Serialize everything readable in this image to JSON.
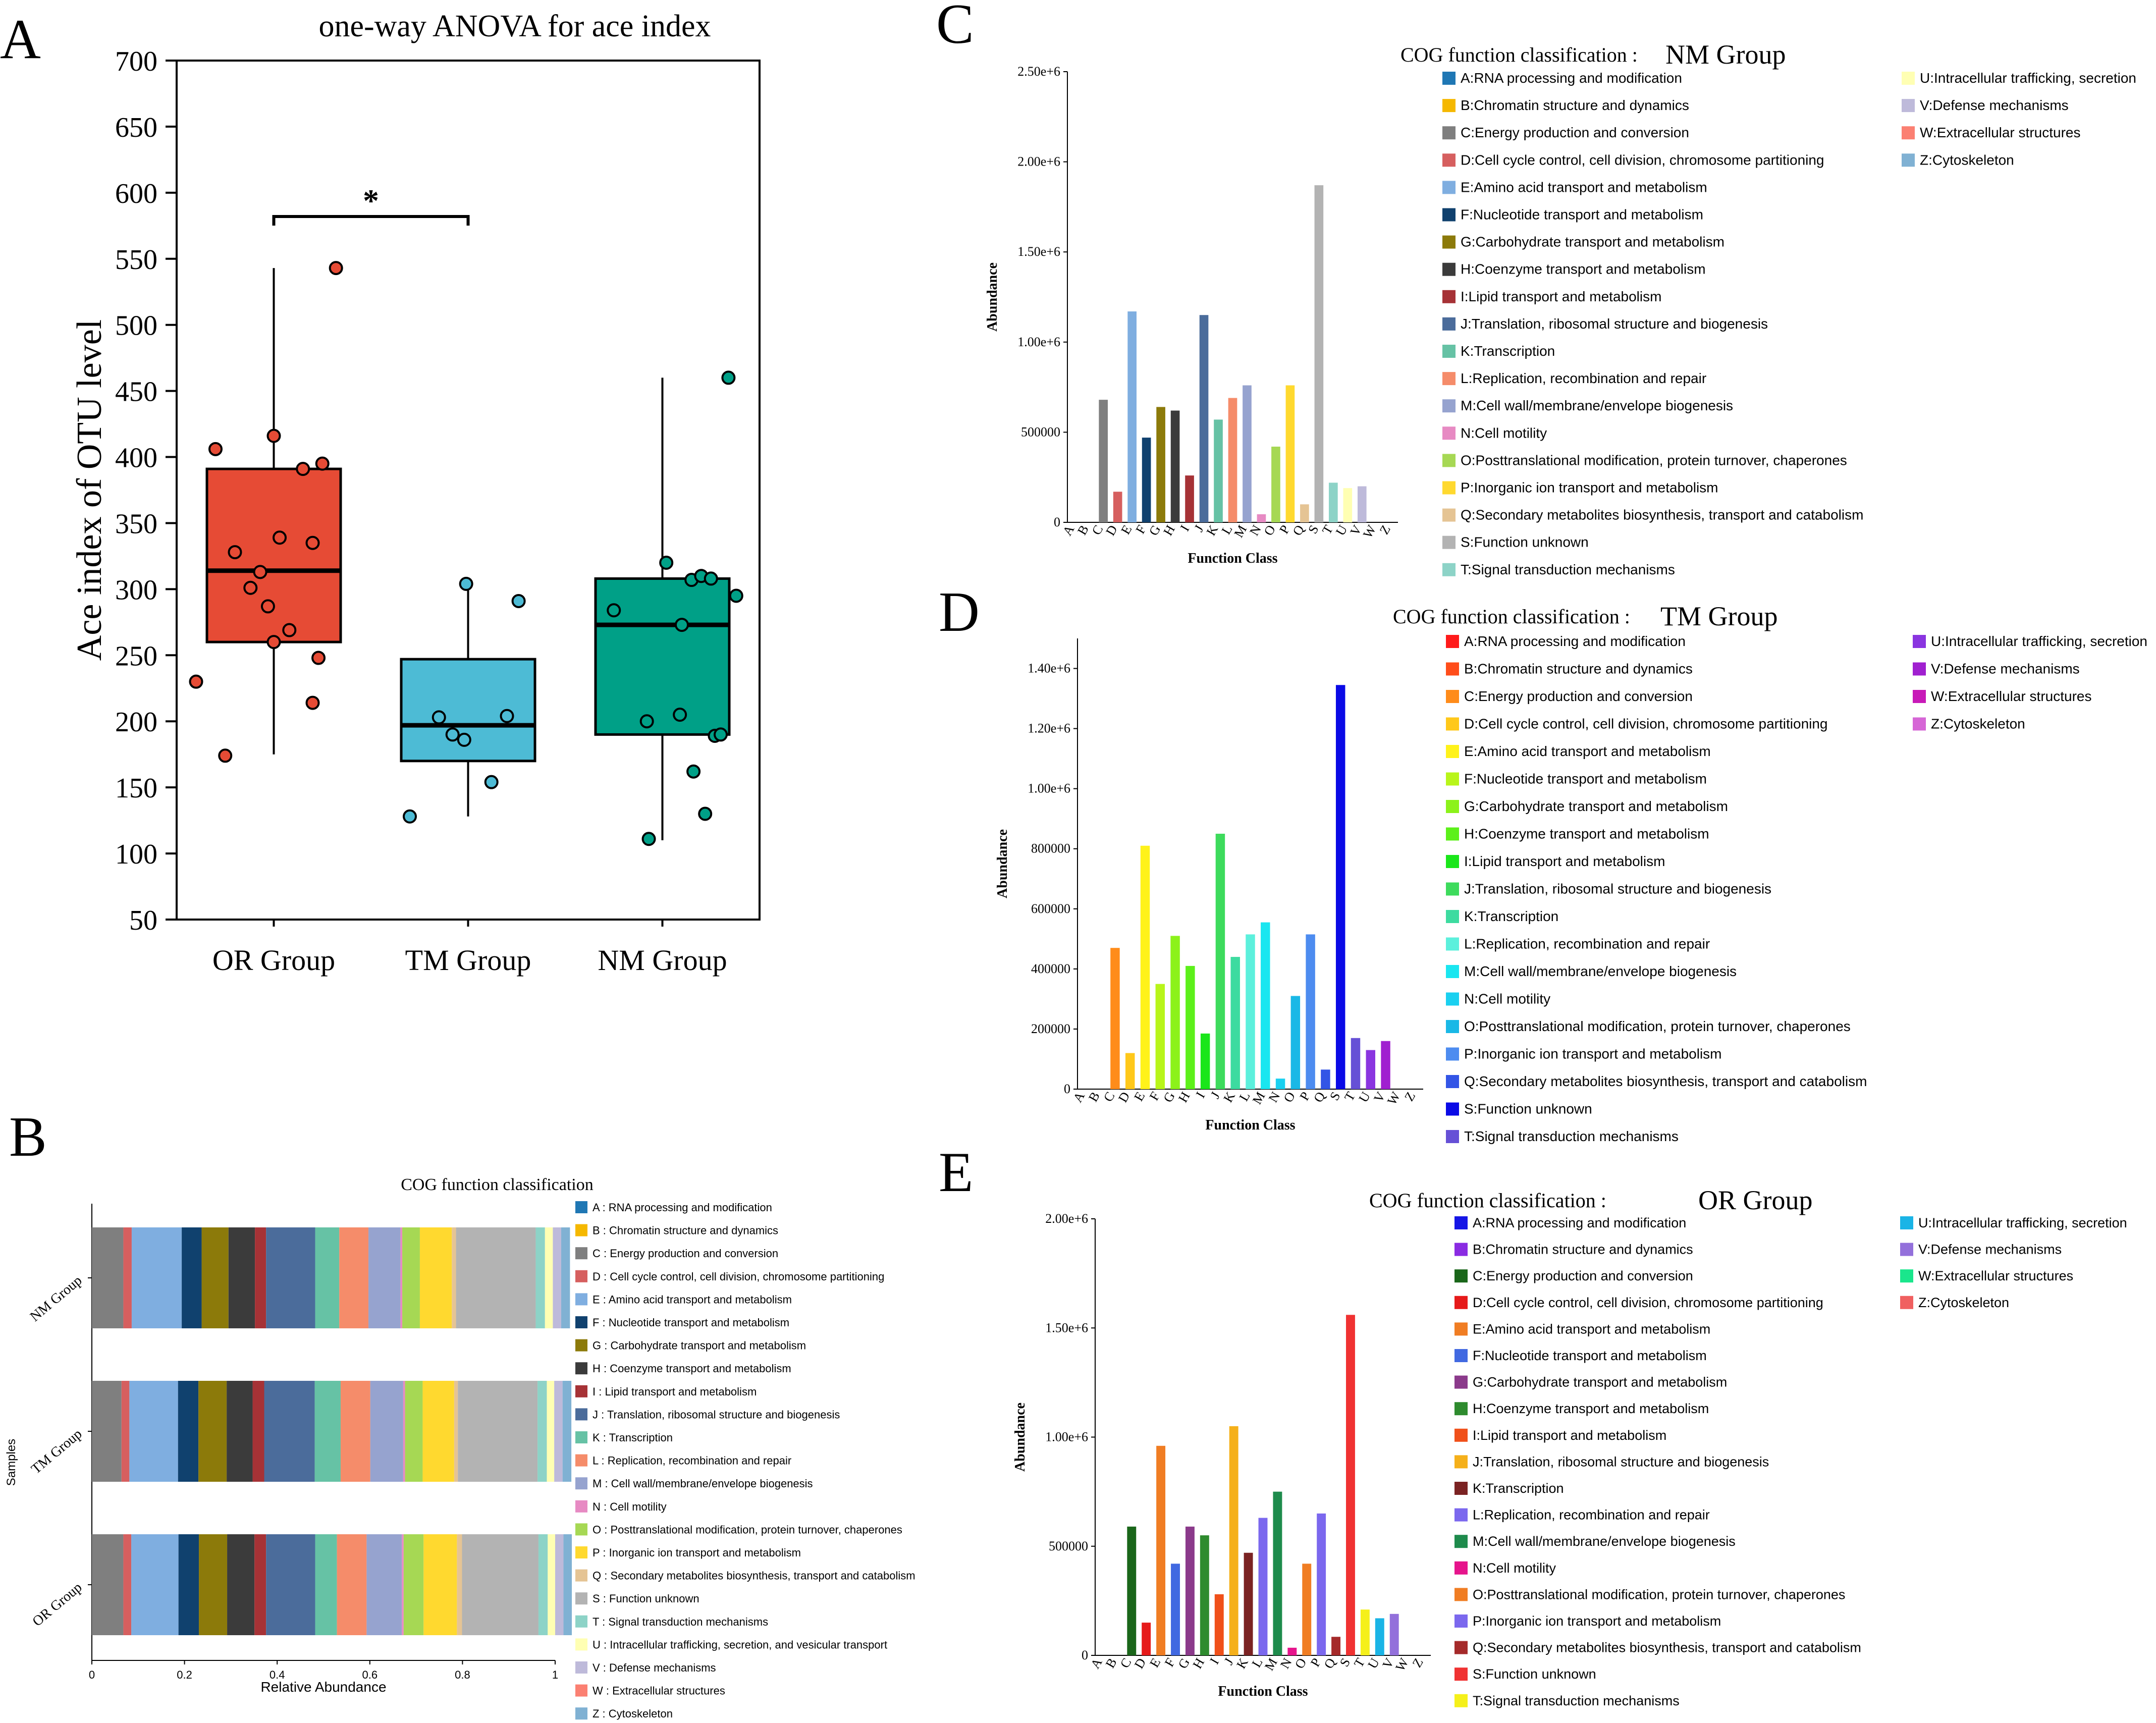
{
  "chart_data": [
    {
      "panel": "A",
      "type": "box",
      "title": "one-way ANOVA for ace index",
      "ylabel": "Ace index of OTU level",
      "xlabel": "",
      "ylim": [
        50,
        700
      ],
      "yticks": [
        50,
        100,
        150,
        200,
        250,
        300,
        350,
        400,
        450,
        500,
        550,
        600,
        650,
        700
      ],
      "significance": {
        "label": "*",
        "from": "OR Group",
        "to": "TM Group"
      },
      "groups": [
        {
          "name": "OR Group",
          "color": "#E64B35",
          "whisker_low": 175,
          "q1": 260,
          "median": 314,
          "q3": 391,
          "whisker_high": 543,
          "points": [
            [
              0.6,
              230
            ],
            [
              0.7,
              406
            ],
            [
              0.75,
              174
            ],
            [
              0.8,
              328
            ],
            [
              0.88,
              301
            ],
            [
              0.93,
              313
            ],
            [
              0.97,
              287
            ],
            [
              1.0,
              416
            ],
            [
              1.0,
              260
            ],
            [
              1.03,
              339
            ],
            [
              1.08,
              269
            ],
            [
              1.15,
              391
            ],
            [
              1.2,
              335
            ],
            [
              1.2,
              214
            ],
            [
              1.23,
              248
            ],
            [
              1.25,
              395
            ],
            [
              1.32,
              543
            ]
          ]
        },
        {
          "name": "TM Group",
          "color": "#4DBBD5",
          "whisker_low": 128,
          "q1": 170,
          "median": 197,
          "q3": 247,
          "whisker_high": 303,
          "points": [
            [
              1.7,
              128
            ],
            [
              1.85,
              203
            ],
            [
              1.92,
              190
            ],
            [
              1.98,
              186
            ],
            [
              1.99,
              304
            ],
            [
              2.12,
              154
            ],
            [
              2.2,
              204
            ],
            [
              2.26,
              291
            ]
          ]
        },
        {
          "name": "NM Group",
          "color": "#00A087",
          "whisker_low": 110,
          "q1": 190,
          "median": 273,
          "q3": 308,
          "whisker_high": 460,
          "points": [
            [
              2.75,
              284
            ],
            [
              2.92,
              200
            ],
            [
              2.93,
              111
            ],
            [
              3.02,
              320
            ],
            [
              3.09,
              205
            ],
            [
              3.1,
              273
            ],
            [
              3.15,
              307
            ],
            [
              3.16,
              162
            ],
            [
              3.2,
              310
            ],
            [
              3.22,
              130
            ],
            [
              3.25,
              308
            ],
            [
              3.27,
              189
            ],
            [
              3.3,
              190
            ],
            [
              3.34,
              460
            ],
            [
              3.38,
              295
            ]
          ]
        }
      ]
    },
    {
      "panel": "B",
      "type": "stacked-bar-horizontal",
      "title": "COG function classification",
      "xlabel": "Relative Abundance",
      "ylabel": "Samples",
      "xlim": [
        0,
        1
      ],
      "xticks": [
        "0",
        "0.2",
        "0.4",
        "0.6",
        "0.8",
        "1"
      ],
      "legend": [
        {
          "code": "A",
          "label": "A : RNA processing and modification",
          "color": "#1F77B4"
        },
        {
          "code": "B",
          "label": "B : Chromatin structure and dynamics",
          "color": "#F5B800"
        },
        {
          "code": "C",
          "label": "C : Energy production and conversion",
          "color": "#7F7F7F"
        },
        {
          "code": "D",
          "label": "D : Cell cycle control, cell division, chromosome partitioning",
          "color": "#D65F5F"
        },
        {
          "code": "E",
          "label": "E : Amino acid transport and metabolism",
          "color": "#7FAEE0"
        },
        {
          "code": "F",
          "label": "F : Nucleotide transport and metabolism",
          "color": "#10416E"
        },
        {
          "code": "G",
          "label": "G : Carbohydrate transport and metabolism",
          "color": "#8C7A0A"
        },
        {
          "code": "H",
          "label": "H : Coenzyme transport and metabolism",
          "color": "#3B3B3B"
        },
        {
          "code": "I",
          "label": "I : Lipid transport and metabolism",
          "color": "#A63236"
        },
        {
          "code": "J",
          "label": "J : Translation, ribosomal structure and biogenesis",
          "color": "#4B6C9B"
        },
        {
          "code": "K",
          "label": "K : Transcription",
          "color": "#66C2A5"
        },
        {
          "code": "L",
          "label": "L : Replication, recombination and repair",
          "color": "#F58C6A"
        },
        {
          "code": "M",
          "label": "M : Cell wall/membrane/envelope biogenesis",
          "color": "#96A3CF"
        },
        {
          "code": "N",
          "label": "N : Cell motility",
          "color": "#E78AC3"
        },
        {
          "code": "O",
          "label": "O : Posttranslational modification, protein turnover, chaperones",
          "color": "#A6D854"
        },
        {
          "code": "P",
          "label": "P : Inorganic ion transport and metabolism",
          "color": "#FFD92F"
        },
        {
          "code": "Q",
          "label": "Q : Secondary metabolites biosynthesis, transport and catabolism",
          "color": "#E5C494"
        },
        {
          "code": "S",
          "label": "S : Function unknown",
          "color": "#B3B3B3"
        },
        {
          "code": "T",
          "label": "T : Signal transduction mechanisms",
          "color": "#8DD3C7"
        },
        {
          "code": "U",
          "label": "U : Intracellular trafficking, secretion, and vesicular transport",
          "color": "#FFFFB3"
        },
        {
          "code": "V",
          "label": "V : Defense mechanisms",
          "color": "#BEBADA"
        },
        {
          "code": "W",
          "label": "W : Extracellular structures",
          "color": "#FB8072"
        },
        {
          "code": "Z",
          "label": "Z : Cytoskeleton",
          "color": "#80B1D3"
        }
      ],
      "series": [
        {
          "name": "NM Group",
          "values": [
            0.0,
            0.0,
            0.068,
            0.018,
            0.108,
            0.043,
            0.058,
            0.057,
            0.024,
            0.106,
            0.052,
            0.063,
            0.069,
            0.004,
            0.038,
            0.069,
            0.009,
            0.172,
            0.02,
            0.017,
            0.018,
            0.0,
            0.019
          ]
        },
        {
          "name": "TM Group",
          "values": [
            0.0,
            0.0,
            0.064,
            0.017,
            0.105,
            0.044,
            0.061,
            0.056,
            0.025,
            0.109,
            0.056,
            0.064,
            0.071,
            0.004,
            0.038,
            0.068,
            0.008,
            0.172,
            0.02,
            0.016,
            0.018,
            0.0,
            0.019
          ]
        },
        {
          "name": "OR Group",
          "values": [
            0.0,
            0.0,
            0.068,
            0.017,
            0.102,
            0.044,
            0.061,
            0.059,
            0.025,
            0.106,
            0.047,
            0.064,
            0.076,
            0.004,
            0.043,
            0.072,
            0.011,
            0.165,
            0.02,
            0.016,
            0.018,
            0.0,
            0.018
          ]
        }
      ]
    },
    {
      "panel": "C",
      "type": "bar",
      "title": "COG function classification :",
      "group": "NM Group",
      "xlabel": "Function Class",
      "ylabel": "Abundance",
      "ylim": [
        0,
        2500000
      ],
      "yticks": [
        "0",
        "500000",
        "1.00e+6",
        "1.50e+6",
        "2.00e+6",
        "2.50e+6"
      ],
      "categories": [
        "A",
        "B",
        "C",
        "D",
        "E",
        "F",
        "G",
        "H",
        "I",
        "J",
        "K",
        "L",
        "M",
        "N",
        "O",
        "P",
        "Q",
        "S",
        "T",
        "U",
        "V",
        "W",
        "Z"
      ],
      "values": [
        0,
        0,
        680000,
        170000,
        1170000,
        470000,
        640000,
        620000,
        260000,
        1150000,
        570000,
        690000,
        760000,
        45000,
        420000,
        760000,
        100000,
        1870000,
        220000,
        190000,
        200000,
        0,
        0
      ],
      "colors": [
        "#1F77B4",
        "#F5B800",
        "#7F7F7F",
        "#D65F5F",
        "#7FAEE0",
        "#10416E",
        "#8C7A0A",
        "#3B3B3B",
        "#A63236",
        "#4B6C9B",
        "#66C2A5",
        "#F58C6A",
        "#96A3CF",
        "#E78AC3",
        "#A6D854",
        "#FFD92F",
        "#E5C494",
        "#B3B3B3",
        "#8DD3C7",
        "#FFFFB3",
        "#BEBADA",
        "#FB8072",
        "#80B1D3"
      ],
      "legend_left": [
        "A:RNA processing and modification",
        "B:Chromatin structure and dynamics",
        "C:Energy production and conversion",
        "D:Cell cycle control, cell division, chromosome partitioning",
        "E:Amino acid transport and metabolism",
        "F:Nucleotide transport and metabolism",
        "G:Carbohydrate transport and metabolism",
        "H:Coenzyme transport and metabolism",
        "I:Lipid transport and metabolism",
        "J:Translation, ribosomal structure and biogenesis",
        "K:Transcription",
        "L:Replication, recombination and repair",
        "M:Cell wall/membrane/envelope biogenesis",
        "N:Cell motility",
        "O:Posttranslational modification, protein turnover, chaperones",
        "P:Inorganic ion transport and metabolism",
        "Q:Secondary metabolites biosynthesis, transport and catabolism",
        "S:Function unknown",
        "T:Signal transduction mechanisms"
      ],
      "legend_right": [
        "U:Intracellular trafficking, secretion",
        "V:Defense mechanisms",
        "W:Extracellular structures",
        "Z:Cytoskeleton"
      ]
    },
    {
      "panel": "D",
      "type": "bar",
      "title": "COG function classification :",
      "group": "TM Group",
      "xlabel": "Function Class",
      "ylabel": "Abundance",
      "ylim": [
        0,
        1500000
      ],
      "yticks": [
        "0",
        "200000",
        "400000",
        "600000",
        "800000",
        "1.00e+6",
        "1.20e+6",
        "1.40e+6"
      ],
      "categories": [
        "A",
        "B",
        "C",
        "D",
        "E",
        "F",
        "G",
        "H",
        "I",
        "J",
        "K",
        "L",
        "M",
        "N",
        "O",
        "P",
        "Q",
        "S",
        "T",
        "U",
        "V",
        "W",
        "Z"
      ],
      "values": [
        0,
        0,
        470000,
        120000,
        810000,
        350000,
        510000,
        410000,
        185000,
        850000,
        440000,
        515000,
        555000,
        35000,
        310000,
        515000,
        65000,
        1345000,
        170000,
        130000,
        160000,
        0,
        0
      ],
      "colors": [
        "#FF1A1A",
        "#FF4D1A",
        "#FF8C1A",
        "#FFC81A",
        "#FFF21A",
        "#B8F51A",
        "#8CF21A",
        "#5CF01A",
        "#1AE61A",
        "#3DDB5C",
        "#3DDBA0",
        "#5CF0DC",
        "#1AE6F0",
        "#1AD0F0",
        "#1AB8E6",
        "#4D8CF0",
        "#3355E6",
        "#0A0AE6",
        "#6650D6",
        "#8A35E0",
        "#A020D0",
        "#C81AB8",
        "#D666D6"
      ],
      "legend_left": [
        "A:RNA processing and modification",
        "B:Chromatin structure and dynamics",
        "C:Energy production and conversion",
        "D:Cell cycle control, cell division, chromosome partitioning",
        "E:Amino acid transport and metabolism",
        "F:Nucleotide transport and metabolism",
        "G:Carbohydrate transport and metabolism",
        "H:Coenzyme transport and metabolism",
        "I:Lipid transport and metabolism",
        "J:Translation, ribosomal structure and biogenesis",
        "K:Transcription",
        "L:Replication, recombination and repair",
        "M:Cell wall/membrane/envelope biogenesis",
        "N:Cell motility",
        "O:Posttranslational modification, protein turnover, chaperones",
        "P:Inorganic ion transport and metabolism",
        "Q:Secondary metabolites biosynthesis, transport and catabolism",
        "S:Function unknown",
        "T:Signal transduction mechanisms"
      ],
      "legend_right": [
        "U:Intracellular trafficking, secretion",
        "V:Defense mechanisms",
        "W:Extracellular structures",
        "Z:Cytoskeleton"
      ]
    },
    {
      "panel": "E",
      "type": "bar",
      "title": "COG function classification :",
      "group": "OR Group",
      "xlabel": "Function Class",
      "ylabel": "Abundance",
      "ylim": [
        0,
        2000000
      ],
      "yticks": [
        "0",
        "500000",
        "1.00e+6",
        "1.50e+6",
        "2.00e+6"
      ],
      "categories": [
        "A",
        "B",
        "C",
        "D",
        "E",
        "F",
        "G",
        "H",
        "I",
        "J",
        "K",
        "L",
        "M",
        "N",
        "O",
        "P",
        "Q",
        "S",
        "T",
        "U",
        "V",
        "W",
        "Z"
      ],
      "values": [
        0,
        0,
        590000,
        150000,
        960000,
        420000,
        590000,
        550000,
        280000,
        1050000,
        470000,
        630000,
        750000,
        35000,
        420000,
        650000,
        85000,
        1560000,
        210000,
        170000,
        190000,
        0,
        0
      ],
      "colors": [
        "#1515E6",
        "#8A2BE2",
        "#1A661A",
        "#E61A1A",
        "#F07D23",
        "#4169E1",
        "#8B3A8B",
        "#2E8B2E",
        "#F0501A",
        "#F5B01A",
        "#7B2323",
        "#7B68EE",
        "#1E8B4C",
        "#E6148C",
        "#F07D23",
        "#7B68EE",
        "#A52A2A",
        "#F03232",
        "#F5F01A",
        "#1AB4E6",
        "#9370DB",
        "#1AE68C",
        "#F06060"
      ],
      "legend_left": [
        "A:RNA processing and modification",
        "B:Chromatin structure and dynamics",
        "C:Energy production and conversion",
        "D:Cell cycle control, cell division, chromosome partitioning",
        "E:Amino acid transport and metabolism",
        "F:Nucleotide transport and metabolism",
        "G:Carbohydrate transport and metabolism",
        "H:Coenzyme transport and metabolism",
        "I:Lipid transport and metabolism",
        "J:Translation, ribosomal structure and biogenesis",
        "K:Transcription",
        "L:Replication, recombination and repair",
        "M:Cell wall/membrane/envelope biogenesis",
        "N:Cell motility",
        "O:Posttranslational modification, protein turnover, chaperones",
        "P:Inorganic ion transport and metabolism",
        "Q:Secondary metabolites biosynthesis, transport and catabolism",
        "S:Function unknown",
        "T:Signal transduction mechanisms"
      ],
      "legend_right": [
        "U:Intracellular trafficking, secretion",
        "V:Defense mechanisms",
        "W:Extracellular structures",
        "Z:Cytoskeleton"
      ]
    }
  ]
}
